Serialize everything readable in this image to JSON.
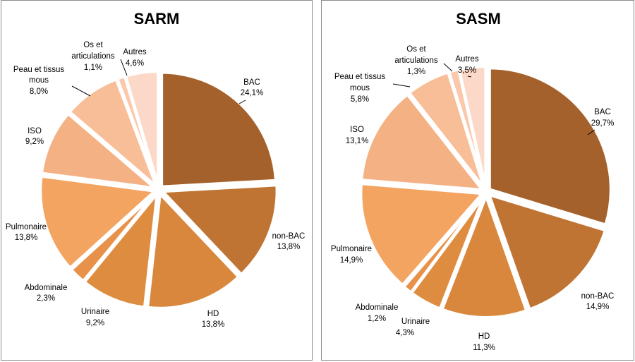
{
  "chart_data": [
    {
      "type": "pie",
      "title": "SARM",
      "slices": [
        {
          "label": "BAC",
          "value": 24.1,
          "text": "24,1%",
          "color": "#A5612B"
        },
        {
          "label": "non-BAC",
          "value": 13.8,
          "text": "13,8%",
          "color": "#BF7434"
        },
        {
          "label": "HD",
          "value": 13.8,
          "text": "13,8%",
          "color": "#D8873D"
        },
        {
          "label": "Urinaire",
          "value": 9.2,
          "text": "9,2%",
          "color": "#DE8C3F"
        },
        {
          "label": "Abdominale",
          "value": 2.3,
          "text": "2,3%",
          "color": "#E8914A"
        },
        {
          "label": "Pulmonaire",
          "value": 13.8,
          "text": "13,8%",
          "color": "#F4A461"
        },
        {
          "label": "ISO",
          "value": 9.2,
          "text": "9,2%",
          "color": "#F4B184"
        },
        {
          "label": "Peau et tissus mous",
          "value": 8.0,
          "text": "8,0%",
          "color": "#F8BE98"
        },
        {
          "label": "Os et articulations",
          "value": 1.1,
          "text": "1,1%",
          "color": "#FAC8AB"
        },
        {
          "label": "Autres",
          "value": 4.6,
          "text": "4,6%",
          "color": "#FBD8C7"
        }
      ]
    },
    {
      "type": "pie",
      "title": "SASM",
      "slices": [
        {
          "label": "BAC",
          "value": 29.7,
          "text": "29,7%",
          "color": "#A5612B"
        },
        {
          "label": "non-BAC",
          "value": 14.9,
          "text": "14,9%",
          "color": "#BF7434"
        },
        {
          "label": "HD",
          "value": 11.3,
          "text": "11,3%",
          "color": "#D8873D"
        },
        {
          "label": "Urinaire",
          "value": 4.3,
          "text": "4,3%",
          "color": "#DE8C3F"
        },
        {
          "label": "Abdominale",
          "value": 1.2,
          "text": "1,2%",
          "color": "#E8914A"
        },
        {
          "label": "Pulmonaire",
          "value": 14.9,
          "text": "14,9%",
          "color": "#F4A461"
        },
        {
          "label": "ISO",
          "value": 13.1,
          "text": "13,1%",
          "color": "#F4B184"
        },
        {
          "label": "Peau et tissus mous",
          "value": 5.8,
          "text": "5,8%",
          "color": "#F8BE98"
        },
        {
          "label": "Os et articulations",
          "value": 1.3,
          "text": "1,3%",
          "color": "#FAC8AB"
        },
        {
          "label": "Autres",
          "value": 3.5,
          "text": "3,5%",
          "color": "#FBD8C7"
        }
      ]
    }
  ]
}
